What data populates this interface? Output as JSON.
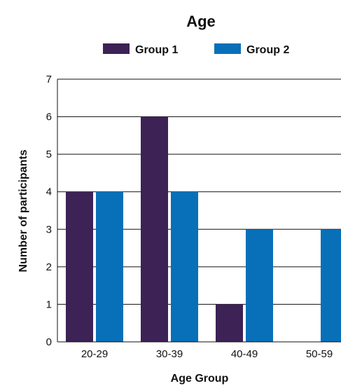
{
  "chart_data": {
    "type": "bar",
    "title": "Age",
    "xlabel": "Age Group",
    "ylabel": "Number of participants",
    "categories": [
      "20-29",
      "30-39",
      "40-49",
      "50-59"
    ],
    "series": [
      {
        "name": "Group 1",
        "values": [
          4,
          6,
          1,
          0
        ],
        "color": "#3c2255"
      },
      {
        "name": "Group 2",
        "values": [
          4,
          4,
          3,
          3
        ],
        "color": "#0870b8"
      }
    ],
    "ylim": [
      0,
      7
    ],
    "yticks": [
      0,
      1,
      2,
      3,
      4,
      5,
      6,
      7
    ],
    "grid": true,
    "legend_position": "top"
  }
}
